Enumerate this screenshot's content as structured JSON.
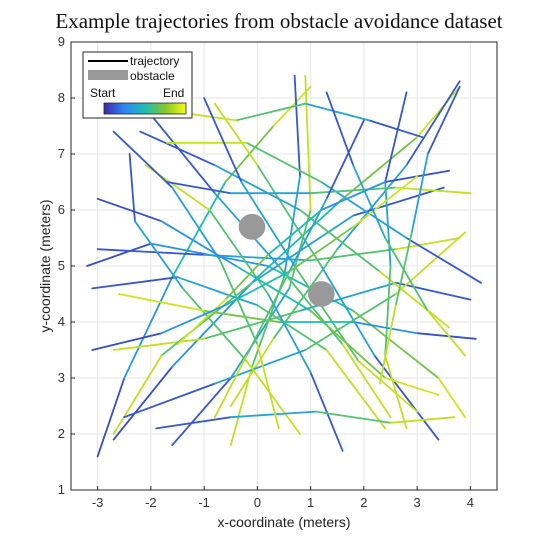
{
  "chart_data": {
    "type": "line",
    "title": "Example trajectories from obstacle avoidance dataset",
    "xlabel": "x-coordinate (meters)",
    "ylabel": "y-coordinate (meters)",
    "xlim": [
      -3.5,
      4.5
    ],
    "ylim": [
      1,
      9
    ],
    "xticks": [
      -3,
      -2,
      -1,
      0,
      1,
      2,
      3,
      4
    ],
    "yticks": [
      1,
      2,
      3,
      4,
      5,
      6,
      7,
      8,
      9
    ],
    "grid": true,
    "legend": {
      "placement": "top-left",
      "entries": [
        "trajectory",
        "obstacle"
      ],
      "colorbar": {
        "start_label": "Start",
        "end_label": "End",
        "colors": [
          "#3e26a8",
          "#2e87f7",
          "#1cbdb0",
          "#87c62e",
          "#f9fb15"
        ]
      }
    },
    "obstacles": [
      {
        "x": -0.1,
        "y": 5.7,
        "rx": 0.25,
        "ry": 0.23,
        "color": "#999999"
      },
      {
        "x": 1.2,
        "y": 4.5,
        "rx": 0.25,
        "ry": 0.23,
        "color": "#999999"
      }
    ],
    "trajectories": [
      [
        [
          -3.0,
          1.6
        ],
        [
          -2.5,
          3.0
        ],
        [
          -1.6,
          4.8
        ],
        [
          -0.6,
          6.5
        ],
        [
          0.3,
          7.5
        ],
        [
          1.0,
          8.2
        ]
      ],
      [
        [
          -2.7,
          1.9
        ],
        [
          -1.6,
          3.2
        ],
        [
          0.0,
          4.8
        ],
        [
          1.6,
          6.2
        ],
        [
          3.0,
          7.3
        ],
        [
          3.8,
          8.2
        ]
      ],
      [
        [
          -3.2,
          5.0
        ],
        [
          -2.0,
          5.4
        ],
        [
          0.2,
          5.0
        ],
        [
          1.8,
          4.2
        ],
        [
          3.4,
          3.0
        ],
        [
          3.9,
          2.3
        ]
      ],
      [
        [
          -3.0,
          5.3
        ],
        [
          -1.0,
          5.2
        ],
        [
          1.0,
          5.1
        ],
        [
          2.6,
          5.3
        ],
        [
          3.8,
          5.5
        ]
      ],
      [
        [
          3.8,
          8.3
        ],
        [
          2.8,
          6.8
        ],
        [
          1.5,
          5.3
        ],
        [
          0.3,
          3.7
        ],
        [
          -0.5,
          2.5
        ]
      ],
      [
        [
          3.4,
          1.9
        ],
        [
          2.2,
          3.4
        ],
        [
          1.2,
          5.0
        ],
        [
          0.0,
          6.8
        ],
        [
          -0.8,
          7.9
        ]
      ],
      [
        [
          4.0,
          4.4
        ],
        [
          2.6,
          4.7
        ],
        [
          0.8,
          4.2
        ],
        [
          -1.0,
          3.7
        ],
        [
          -2.7,
          3.5
        ]
      ],
      [
        [
          3.5,
          6.4
        ],
        [
          1.8,
          5.9
        ],
        [
          -0.1,
          4.7
        ],
        [
          -1.8,
          3.4
        ],
        [
          -2.7,
          2.0
        ]
      ],
      [
        [
          -2.0,
          7.7
        ],
        [
          -0.8,
          6.3
        ],
        [
          0.4,
          5.0
        ],
        [
          1.6,
          3.6
        ],
        [
          2.5,
          2.3
        ]
      ],
      [
        [
          -1.6,
          1.8
        ],
        [
          -0.5,
          3.0
        ],
        [
          0.6,
          4.6
        ],
        [
          1.0,
          6.0
        ],
        [
          0.9,
          8.4
        ]
      ],
      [
        [
          0.7,
          8.4
        ],
        [
          0.8,
          6.6
        ],
        [
          0.5,
          4.8
        ],
        [
          -0.1,
          3.2
        ],
        [
          -0.5,
          1.8
        ]
      ],
      [
        [
          -3.1,
          4.6
        ],
        [
          -1.5,
          4.8
        ],
        [
          0.0,
          4.3
        ],
        [
          1.3,
          3.5
        ],
        [
          2.4,
          2.1
        ]
      ],
      [
        [
          -2.2,
          7.4
        ],
        [
          -0.8,
          6.8
        ],
        [
          0.8,
          6.0
        ],
        [
          2.3,
          4.9
        ],
        [
          3.6,
          3.9
        ]
      ],
      [
        [
          -2.5,
          2.3
        ],
        [
          -0.8,
          2.9
        ],
        [
          0.9,
          3.5
        ],
        [
          2.6,
          4.5
        ],
        [
          3.9,
          5.6
        ]
      ],
      [
        [
          4.2,
          4.7
        ],
        [
          2.8,
          5.5
        ],
        [
          1.2,
          6.5
        ],
        [
          -0.2,
          7.2
        ],
        [
          -1.7,
          7.2
        ]
      ],
      [
        [
          1.6,
          1.7
        ],
        [
          1.0,
          3.1
        ],
        [
          0.2,
          4.5
        ],
        [
          -0.9,
          6.0
        ],
        [
          -2.1,
          6.8
        ]
      ],
      [
        [
          -2.4,
          7.0
        ],
        [
          -2.3,
          5.8
        ],
        [
          -1.4,
          4.6
        ],
        [
          -0.2,
          3.3
        ],
        [
          0.8,
          2.0
        ]
      ],
      [
        [
          3.1,
          7.3
        ],
        [
          2.1,
          7.6
        ],
        [
          0.9,
          7.9
        ],
        [
          -0.4,
          7.6
        ],
        [
          -1.9,
          7.8
        ]
      ],
      [
        [
          -1.9,
          2.1
        ],
        [
          -0.5,
          2.3
        ],
        [
          1.1,
          2.4
        ],
        [
          2.5,
          2.2
        ],
        [
          3.7,
          2.3
        ]
      ],
      [
        [
          2.8,
          8.1
        ],
        [
          2.4,
          6.5
        ],
        [
          2.5,
          5.0
        ],
        [
          2.4,
          3.4
        ],
        [
          2.8,
          2.1
        ]
      ],
      [
        [
          -2.7,
          7.4
        ],
        [
          -1.6,
          6.4
        ],
        [
          -0.7,
          5.1
        ],
        [
          0.0,
          3.6
        ],
        [
          0.4,
          2.1
        ]
      ],
      [
        [
          -1.0,
          8.0
        ],
        [
          -0.3,
          6.5
        ],
        [
          0.7,
          5.0
        ],
        [
          1.9,
          3.3
        ],
        [
          3.0,
          2.4
        ]
      ],
      [
        [
          -3.0,
          6.2
        ],
        [
          -1.8,
          5.8
        ],
        [
          -0.4,
          5.0
        ],
        [
          1.0,
          4.2
        ],
        [
          2.4,
          3.0
        ],
        [
          3.4,
          2.7
        ]
      ],
      [
        [
          4.1,
          3.7
        ],
        [
          3.0,
          3.8
        ],
        [
          1.8,
          4.0
        ],
        [
          0.4,
          4.0
        ],
        [
          -1.0,
          4.2
        ],
        [
          -2.6,
          4.5
        ]
      ],
      [
        [
          -1.7,
          6.5
        ],
        [
          -0.5,
          6.3
        ],
        [
          1.0,
          6.3
        ],
        [
          2.6,
          6.4
        ],
        [
          4.0,
          6.3
        ]
      ],
      [
        [
          2.0,
          7.6
        ],
        [
          1.3,
          6.2
        ],
        [
          0.6,
          4.9
        ],
        [
          -0.2,
          3.4
        ],
        [
          -0.8,
          2.3
        ]
      ],
      [
        [
          3.6,
          6.7
        ],
        [
          2.4,
          6.5
        ],
        [
          1.2,
          6.0
        ],
        [
          0.2,
          5.2
        ],
        [
          -0.6,
          4.4
        ],
        [
          -1.5,
          3.6
        ]
      ],
      [
        [
          -3.1,
          3.5
        ],
        [
          -1.8,
          3.8
        ],
        [
          -0.6,
          4.3
        ],
        [
          0.6,
          4.9
        ],
        [
          1.8,
          5.7
        ],
        [
          3.0,
          6.6
        ]
      ],
      [
        [
          3.8,
          8.2
        ],
        [
          3.2,
          7.0
        ],
        [
          2.9,
          5.6
        ],
        [
          2.6,
          4.3
        ],
        [
          2.3,
          2.9
        ]
      ],
      [
        [
          1.3,
          8.1
        ],
        [
          1.8,
          6.8
        ],
        [
          2.4,
          5.5
        ],
        [
          3.2,
          4.2
        ],
        [
          3.9,
          3.4
        ]
      ]
    ]
  }
}
